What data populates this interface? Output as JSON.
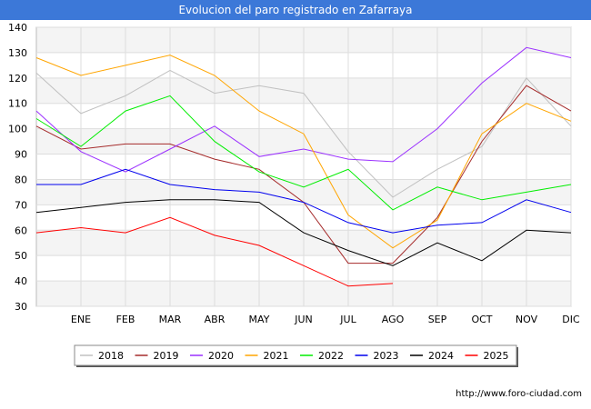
{
  "header": {
    "title": "Evolucion del paro registrado en Zafarraya"
  },
  "footer": {
    "url": "http://www.foro-ciudad.com"
  },
  "chart_data": {
    "type": "line",
    "title": "Evolucion del paro registrado en Zafarraya",
    "xlabel": "",
    "ylabel": "",
    "ylim": [
      30,
      140
    ],
    "yticks": [
      30,
      40,
      50,
      60,
      70,
      80,
      90,
      100,
      110,
      120,
      130,
      140
    ],
    "categories": [
      "",
      "ENE",
      "FEB",
      "MAR",
      "ABR",
      "MAY",
      "JUN",
      "JUL",
      "AGO",
      "SEP",
      "OCT",
      "NOV",
      "DIC"
    ],
    "grid": true,
    "legend_position": "bottom",
    "series": [
      {
        "name": "2018",
        "color": "#c0c0c0",
        "values": [
          122,
          106,
          113,
          123,
          114,
          117,
          114,
          91,
          73,
          84,
          93,
          120,
          101
        ]
      },
      {
        "name": "2019",
        "color": "#a52a2a",
        "values": [
          101,
          92,
          94,
          94,
          88,
          84,
          71,
          47,
          47,
          65,
          95,
          117,
          107
        ]
      },
      {
        "name": "2020",
        "color": "#9b30ff",
        "values": [
          107,
          91,
          83,
          92,
          101,
          89,
          92,
          88,
          87,
          100,
          118,
          132,
          128
        ]
      },
      {
        "name": "2021",
        "color": "#ffa500",
        "values": [
          128,
          121,
          125,
          129,
          121,
          107,
          98,
          66,
          53,
          64,
          98,
          110,
          103
        ]
      },
      {
        "name": "2022",
        "color": "#00ee00",
        "values": [
          104,
          93,
          107,
          113,
          95,
          83,
          77,
          84,
          68,
          77,
          72,
          75,
          78
        ]
      },
      {
        "name": "2023",
        "color": "#0000ee",
        "values": [
          78,
          78,
          84,
          78,
          76,
          75,
          71,
          63,
          59,
          62,
          63,
          72,
          67
        ]
      },
      {
        "name": "2024",
        "color": "#000000",
        "values": [
          67,
          69,
          71,
          72,
          72,
          71,
          59,
          52,
          46,
          55,
          48,
          60,
          59
        ]
      },
      {
        "name": "2025",
        "color": "#ff0000",
        "values": [
          59,
          61,
          59,
          65,
          58,
          54,
          46,
          38,
          39,
          null,
          null,
          null,
          null
        ]
      }
    ]
  }
}
